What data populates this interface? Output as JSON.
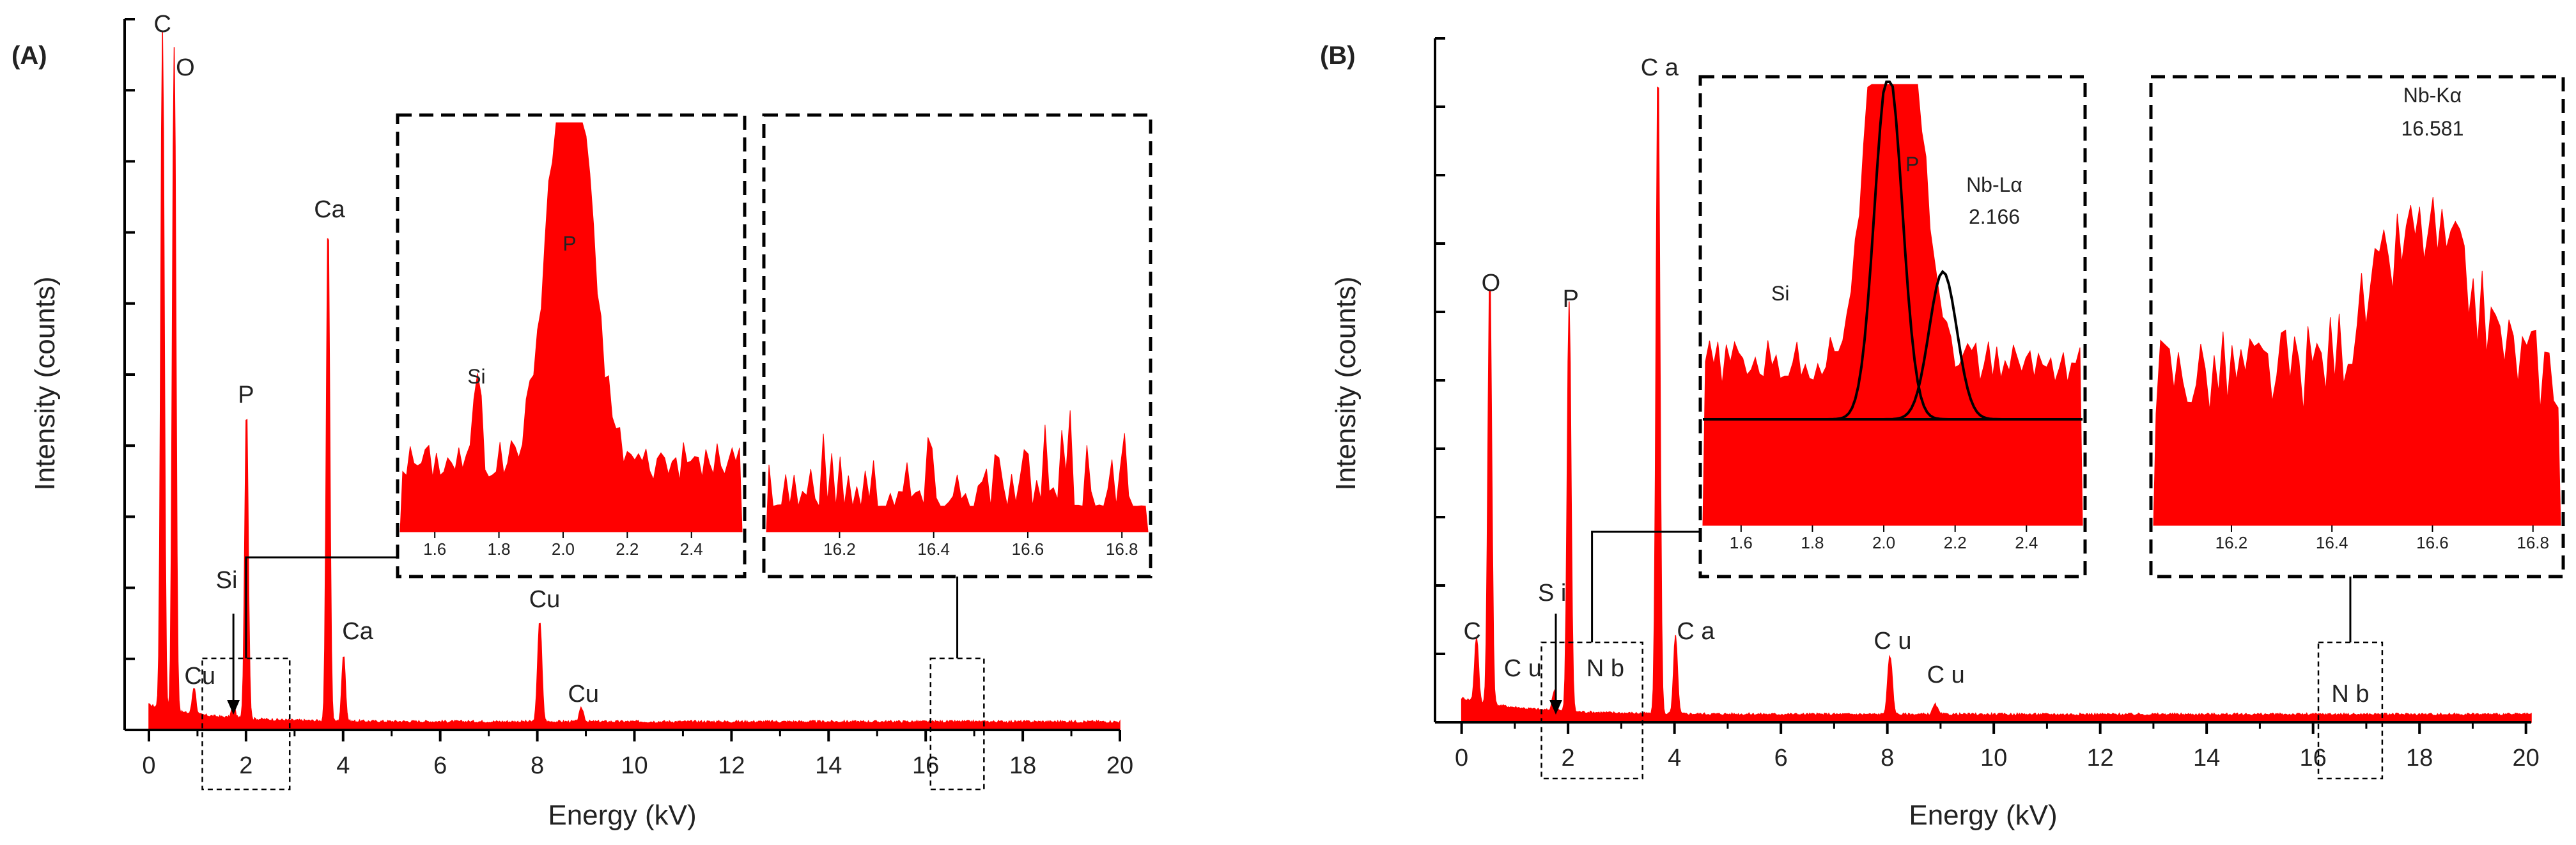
{
  "colors": {
    "spectrum": "#ff0000",
    "axis": "#000000",
    "background": "#ffffff",
    "fit": "#000000"
  },
  "chart_data": [
    {
      "id": "A",
      "type": "area",
      "panel_label": "(A)",
      "xlabel": "Energy (kV)",
      "ylabel": "Intensity (counts)",
      "xlim": [
        -0.5,
        20
      ],
      "ylim": [
        0,
        105
      ],
      "xticks": [
        "0",
        "2",
        "4",
        "6",
        "8",
        "10",
        "12",
        "14",
        "16",
        "18",
        "20"
      ],
      "grid": false,
      "peaks": [
        {
          "x": 0.28,
          "y": 100,
          "w": 0.05
        },
        {
          "x": 0.52,
          "y": 98,
          "w": 0.05
        },
        {
          "x": 0.93,
          "y": 4,
          "w": 0.05
        },
        {
          "x": 1.74,
          "y": 2,
          "w": 0.05
        },
        {
          "x": 2.01,
          "y": 46,
          "w": 0.05
        },
        {
          "x": 3.69,
          "y": 74,
          "w": 0.05
        },
        {
          "x": 4.01,
          "y": 10,
          "w": 0.05
        },
        {
          "x": 8.05,
          "y": 15,
          "w": 0.06
        },
        {
          "x": 8.91,
          "y": 2,
          "w": 0.06
        }
      ],
      "annotations": [
        {
          "text": "C",
          "x": 0.28
        },
        {
          "text": "O",
          "x": 0.75
        },
        {
          "text": "Ca",
          "x": 3.72
        },
        {
          "text": "P",
          "x": 2.0
        },
        {
          "text": "Si",
          "x": 1.6
        },
        {
          "text": "Cu",
          "x": 1.05
        },
        {
          "text": "Ca",
          "x": 4.3
        },
        {
          "text": "Cu",
          "x": 8.15
        },
        {
          "text": "Cu",
          "x": 8.95
        }
      ],
      "zoom_boxes": [
        {
          "from": 1.1,
          "to": 2.9
        },
        {
          "from": 16.1,
          "to": 17.2
        }
      ],
      "insets": [
        {
          "xlim": [
            1.5,
            2.55
          ],
          "xticks": [
            "1.6",
            "1.8",
            "2.0",
            "2.2",
            "2.4"
          ],
          "labels": [
            {
              "text": "Si",
              "x": 1.73
            },
            {
              "text": "P",
              "x": 2.02
            }
          ],
          "fit_curves": []
        },
        {
          "xlim": [
            16.05,
            16.85
          ],
          "xticks": [
            "16.2",
            "16.4",
            "16.6",
            "16.8"
          ],
          "labels": [],
          "fit_curves": []
        }
      ]
    },
    {
      "id": "B",
      "type": "area",
      "panel_label": "(B)",
      "xlabel": "Energy (kV)",
      "ylabel": "Intensity (counts)",
      "xlim": [
        -0.5,
        20.1
      ],
      "ylim": [
        0,
        105
      ],
      "xticks": [
        "0",
        "2",
        "4",
        "6",
        "8",
        "10",
        "12",
        "14",
        "16",
        "18",
        "20"
      ],
      "grid": false,
      "peaks": [
        {
          "x": 0.28,
          "y": 10,
          "w": 0.05
        },
        {
          "x": 0.53,
          "y": 66,
          "w": 0.05
        },
        {
          "x": 1.74,
          "y": 3,
          "w": 0.05
        },
        {
          "x": 2.02,
          "y": 63,
          "w": 0.05
        },
        {
          "x": 3.69,
          "y": 100,
          "w": 0.05
        },
        {
          "x": 4.02,
          "y": 12,
          "w": 0.05
        },
        {
          "x": 8.05,
          "y": 9,
          "w": 0.06
        },
        {
          "x": 8.9,
          "y": 1.5,
          "w": 0.06
        }
      ],
      "annotations": [
        {
          "text": "C",
          "x": 0.2
        },
        {
          "text": "O",
          "x": 0.55
        },
        {
          "text": "C u",
          "x": 1.15
        },
        {
          "text": "S i",
          "x": 1.7
        },
        {
          "text": "P",
          "x": 2.05
        },
        {
          "text": "N b",
          "x": 2.7
        },
        {
          "text": "C a",
          "x": 3.72
        },
        {
          "text": "C a",
          "x": 4.4
        },
        {
          "text": "C u",
          "x": 8.1
        },
        {
          "text": "C u",
          "x": 9.1
        },
        {
          "text": "N b",
          "x": 16.7
        }
      ],
      "zoom_boxes": [
        {
          "from": 1.5,
          "to": 3.4
        },
        {
          "from": 16.1,
          "to": 17.3
        }
      ],
      "insets": [
        {
          "xlim": [
            1.5,
            2.55
          ],
          "xticks": [
            "1.6",
            "1.8",
            "2.0",
            "2.2",
            "2.4"
          ],
          "labels": [
            {
              "text": "Si",
              "x": 1.71
            },
            {
              "text": "P",
              "x": 2.08
            },
            {
              "text": "Nb-Lα",
              "x": 2.3
            },
            {
              "text": "2.166",
              "x": 2.3
            }
          ],
          "fit_curves": [
            {
              "center": 2.013,
              "height": 1.3
            },
            {
              "center": 2.166,
              "height": 0.55
            }
          ]
        },
        {
          "xlim": [
            16.05,
            16.85
          ],
          "xticks": [
            "16.2",
            "16.4",
            "16.6",
            "16.8"
          ],
          "labels": [
            {
              "text": "Nb-Kα",
              "x": 16.6
            },
            {
              "text": "16.581",
              "x": 16.6
            }
          ],
          "fit_curves": []
        }
      ]
    }
  ]
}
